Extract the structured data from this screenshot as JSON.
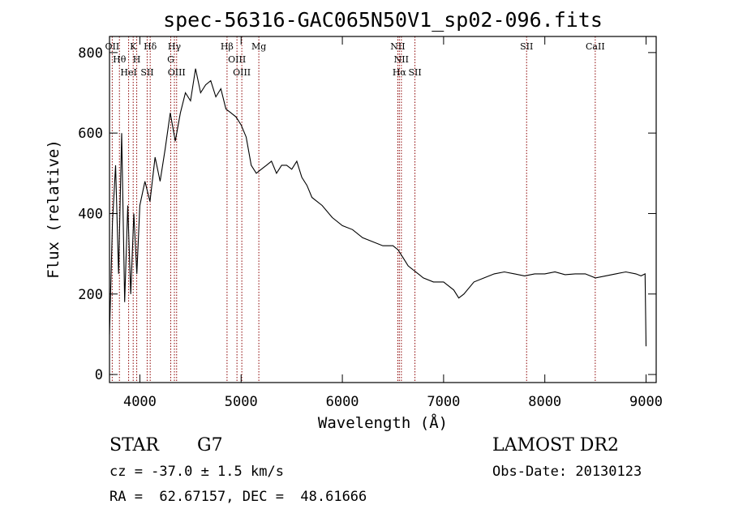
{
  "chart_data": {
    "type": "line",
    "title": "spec-56316-GAC065N50V1_sp02-096.fits",
    "xlabel": "Wavelength (Å)",
    "ylabel": "Flux (relative)",
    "xlim": [
      3700,
      9100
    ],
    "ylim": [
      -20,
      840
    ],
    "xticks": [
      4000,
      5000,
      6000,
      7000,
      8000,
      9000
    ],
    "yticks": [
      0,
      200,
      400,
      600,
      800
    ],
    "grid": false,
    "line_color": "#000000",
    "marker_color": "#8b0000",
    "lines": [
      {
        "label": "OII",
        "wavelength": 3727
      },
      {
        "label": "Hθ",
        "wavelength": 3798
      },
      {
        "label": "HeI",
        "wavelength": 3889
      },
      {
        "label": "K",
        "wavelength": 3934
      },
      {
        "label": "H",
        "wavelength": 3969
      },
      {
        "label": "SII",
        "wavelength": 4072
      },
      {
        "label": "Hδ",
        "wavelength": 4102
      },
      {
        "label": "Hγ",
        "wavelength": 4341
      },
      {
        "label": "G",
        "wavelength": 4305
      },
      {
        "label": "OIII",
        "wavelength": 4363
      },
      {
        "label": "Hβ",
        "wavelength": 4861
      },
      {
        "label": "OIII",
        "wavelength": 4959
      },
      {
        "label": "OIII",
        "wavelength": 5007
      },
      {
        "label": "Mg",
        "wavelength": 5175
      },
      {
        "label": "NII",
        "wavelength": 6548
      },
      {
        "label": "NII",
        "wavelength": 6583
      },
      {
        "label": "Hα",
        "wavelength": 6563
      },
      {
        "label": "SII",
        "wavelength": 6717
      },
      {
        "label": "SII",
        "wavelength": 7820
      },
      {
        "label": "CaII",
        "wavelength": 8498
      }
    ],
    "series": [
      {
        "x": [
          3700,
          3730,
          3760,
          3790,
          3820,
          3850,
          3880,
          3910,
          3940,
          3970,
          4000,
          4050,
          4100,
          4150,
          4200,
          4250,
          4300,
          4350,
          4400,
          4450,
          4500,
          4550,
          4600,
          4650,
          4700,
          4750,
          4800,
          4850,
          4900,
          4950,
          5000,
          5050,
          5100,
          5150,
          5200,
          5250,
          5300,
          5350,
          5400,
          5450,
          5500,
          5550,
          5600,
          5650,
          5700,
          5800,
          5900,
          6000,
          6100,
          6200,
          6300,
          6400,
          6500,
          6550,
          6600,
          6650,
          6700,
          6750,
          6800,
          6900,
          7000,
          7100,
          7150,
          7200,
          7300,
          7400,
          7500,
          7600,
          7700,
          7800,
          7900,
          8000,
          8100,
          8200,
          8300,
          8400,
          8500,
          8600,
          8700,
          8800,
          8900,
          8950,
          8990,
          9000
        ],
        "y": [
          100,
          380,
          520,
          250,
          600,
          180,
          420,
          200,
          400,
          250,
          420,
          480,
          430,
          540,
          480,
          560,
          650,
          580,
          650,
          700,
          680,
          760,
          700,
          720,
          730,
          690,
          710,
          660,
          650,
          640,
          620,
          590,
          520,
          500,
          510,
          520,
          530,
          500,
          520,
          520,
          510,
          530,
          490,
          470,
          440,
          420,
          390,
          370,
          360,
          340,
          330,
          320,
          320,
          310,
          290,
          270,
          260,
          250,
          240,
          230,
          230,
          210,
          190,
          200,
          230,
          240,
          250,
          255,
          250,
          245,
          250,
          250,
          255,
          248,
          250,
          250,
          240,
          245,
          250,
          255,
          250,
          245,
          250,
          70
        ]
      }
    ]
  },
  "info": {
    "class_label": "STAR",
    "subclass": "G7",
    "redshift_line": "cz = -37.0 ± 1.5 km/s",
    "coord_line": "RA =  62.67157, DEC =  48.61666",
    "survey": "LAMOST DR2",
    "obs_date": "Obs-Date: 20130123"
  }
}
